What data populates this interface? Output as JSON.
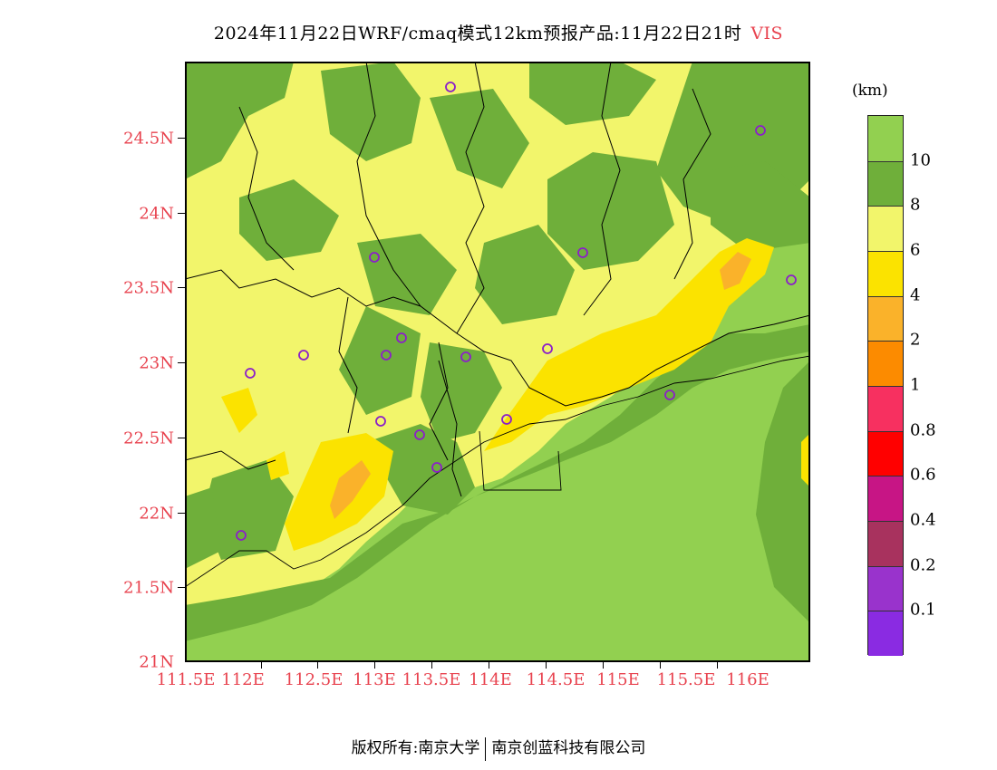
{
  "title": "2024年11月22日WRF/cmaq模式12km预报产品:11月22日21时",
  "variable": "VIS",
  "unit": "(km)",
  "lat_labels": [
    "24.5N",
    "24N",
    "23.5N",
    "23N",
    "22.5N",
    "22N",
    "21.5N",
    "21N"
  ],
  "lon_labels": [
    "111.5E",
    "112E",
    "112.5E",
    "113E",
    "113.5E",
    "114E",
    "114.5E",
    "115E",
    "115.5E",
    "116E"
  ],
  "legend": {
    "labels": [
      "10",
      "8",
      "6",
      "4",
      "2",
      "1",
      "0.8",
      "0.6",
      "0.4",
      "0.2",
      "0.1"
    ],
    "colors": [
      "#92d050",
      "#6faf3a",
      "#f2f56b",
      "#fbe300",
      "#fab22a",
      "#fc8b00",
      "#f73060",
      "#ff0000",
      "#c71585",
      "#a8325e",
      "#9933cc",
      "#8a2be2"
    ]
  },
  "footer": {
    "left": "版权所有:南京大学",
    "right": "南京创蓝科技有限公司"
  },
  "stations_icon": "circle-marker-icon"
}
